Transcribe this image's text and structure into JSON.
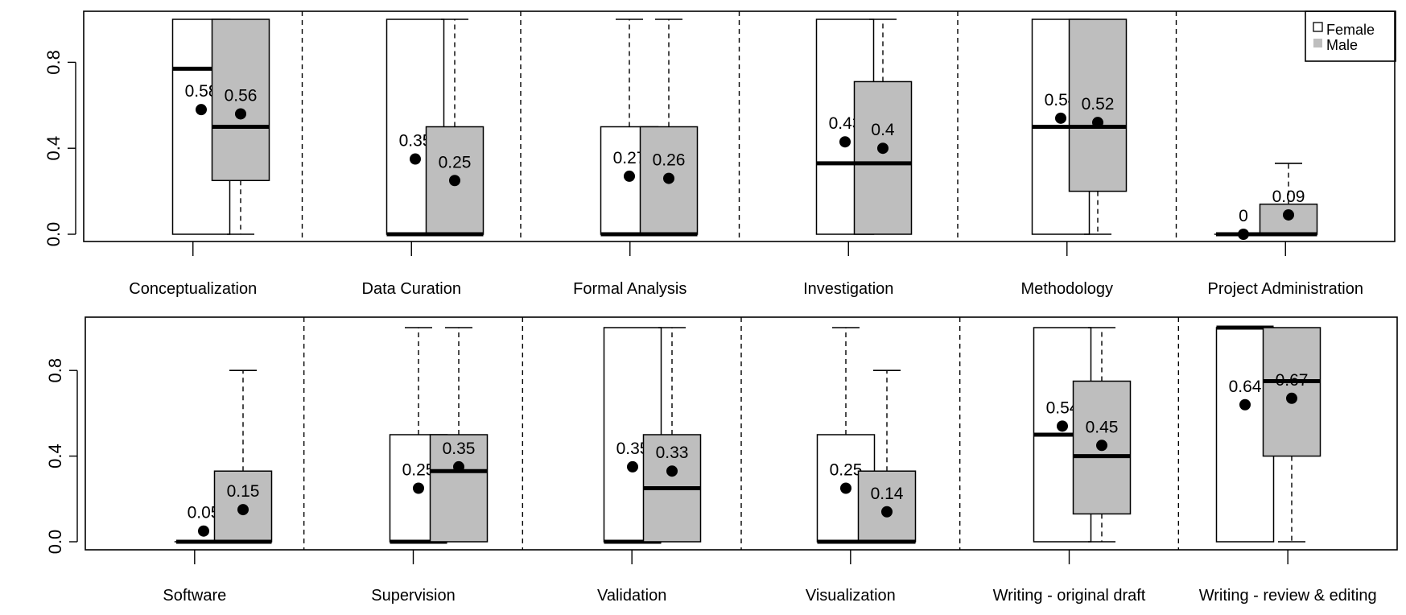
{
  "chart_data": {
    "type": "box",
    "legend": {
      "position": "top-right",
      "entries": [
        {
          "name": "Female",
          "color": "#ffffff"
        },
        {
          "name": "Male",
          "color": "#bebebe"
        }
      ]
    },
    "ylim": [
      0,
      1
    ],
    "yticks": [
      "0.0",
      "0.4",
      "0.8"
    ],
    "panels": [
      {
        "categories": [
          {
            "label": "Conceptualization",
            "female": {
              "min": 0,
              "q1": 0,
              "median": 0.77,
              "q3": 1,
              "max": 1,
              "mean": 0.58,
              "mean_label": "0.58"
            },
            "male": {
              "min": 0,
              "q1": 0.25,
              "median": 0.5,
              "q3": 1,
              "max": 1,
              "mean": 0.56,
              "mean_label": "0.56"
            }
          },
          {
            "label": "Data Curation",
            "female": {
              "min": 0,
              "q1": 0,
              "median": 0,
              "q3": 1,
              "max": 1,
              "mean": 0.35,
              "mean_label": "0.35"
            },
            "male": {
              "min": 0,
              "q1": 0,
              "median": 0,
              "q3": 0.5,
              "max": 1,
              "mean": 0.25,
              "mean_label": "0.25"
            }
          },
          {
            "label": "Formal Analysis",
            "female": {
              "min": 0,
              "q1": 0,
              "median": 0,
              "q3": 0.5,
              "max": 1,
              "mean": 0.27,
              "mean_label": "0.27"
            },
            "male": {
              "min": 0,
              "q1": 0,
              "median": 0,
              "q3": 0.5,
              "max": 1,
              "mean": 0.26,
              "mean_label": "0.26"
            }
          },
          {
            "label": "Investigation",
            "female": {
              "min": 0,
              "q1": 0,
              "median": 0.33,
              "q3": 1,
              "max": 1,
              "mean": 0.43,
              "mean_label": "0.43"
            },
            "male": {
              "min": 0,
              "q1": 0,
              "median": 0.33,
              "q3": 0.71,
              "max": 1,
              "mean": 0.4,
              "mean_label": "0.4"
            }
          },
          {
            "label": "Methodology",
            "female": {
              "min": 0,
              "q1": 0,
              "median": 0.5,
              "q3": 1,
              "max": 1,
              "mean": 0.54,
              "mean_label": "0.54"
            },
            "male": {
              "min": 0,
              "q1": 0.2,
              "median": 0.5,
              "q3": 1,
              "max": 1,
              "mean": 0.52,
              "mean_label": "0.52"
            }
          },
          {
            "label": "Project Administration",
            "female": {
              "min": 0,
              "q1": 0,
              "median": 0,
              "q3": 0,
              "max": 0,
              "mean": 0,
              "mean_label": "0"
            },
            "male": {
              "min": 0,
              "q1": 0,
              "median": 0,
              "q3": 0.14,
              "max": 0.33,
              "mean": 0.09,
              "mean_label": "0.09"
            }
          }
        ]
      },
      {
        "categories": [
          {
            "label": "Software",
            "female": {
              "min": 0,
              "q1": 0,
              "median": 0,
              "q3": 0,
              "max": 0,
              "mean": 0.05,
              "mean_label": "0.05"
            },
            "male": {
              "min": 0,
              "q1": 0,
              "median": 0,
              "q3": 0.33,
              "max": 0.8,
              "mean": 0.15,
              "mean_label": "0.15"
            }
          },
          {
            "label": "Supervision",
            "female": {
              "min": 0,
              "q1": 0,
              "median": 0,
              "q3": 0.5,
              "max": 1,
              "mean": 0.25,
              "mean_label": "0.25"
            },
            "male": {
              "min": 0,
              "q1": 0,
              "median": 0.33,
              "q3": 0.5,
              "max": 1,
              "mean": 0.35,
              "mean_label": "0.35"
            }
          },
          {
            "label": "Validation",
            "female": {
              "min": 0,
              "q1": 0,
              "median": 0,
              "q3": 1,
              "max": 1,
              "mean": 0.35,
              "mean_label": "0.35"
            },
            "male": {
              "min": 0,
              "q1": 0,
              "median": 0.25,
              "q3": 0.5,
              "max": 1,
              "mean": 0.33,
              "mean_label": "0.33"
            }
          },
          {
            "label": "Visualization",
            "female": {
              "min": 0,
              "q1": 0,
              "median": 0,
              "q3": 0.5,
              "max": 1,
              "mean": 0.25,
              "mean_label": "0.25"
            },
            "male": {
              "min": 0,
              "q1": 0,
              "median": 0,
              "q3": 0.33,
              "max": 0.8,
              "mean": 0.14,
              "mean_label": "0.14"
            }
          },
          {
            "label": "Writing - original draft",
            "female": {
              "min": 0,
              "q1": 0,
              "median": 0.5,
              "q3": 1,
              "max": 1,
              "mean": 0.54,
              "mean_label": "0.54"
            },
            "male": {
              "min": 0,
              "q1": 0.13,
              "median": 0.4,
              "q3": 0.75,
              "max": 1,
              "mean": 0.45,
              "mean_label": "0.45"
            }
          },
          {
            "label": "Writing - review & editing",
            "female": {
              "min": 0,
              "q1": 0,
              "median": 1,
              "q3": 1,
              "max": 1,
              "mean": 0.64,
              "mean_label": "0.64"
            },
            "male": {
              "min": 0,
              "q1": 0.4,
              "median": 0.75,
              "q3": 1,
              "max": 1,
              "mean": 0.67,
              "mean_label": "0.67"
            }
          }
        ]
      }
    ]
  }
}
